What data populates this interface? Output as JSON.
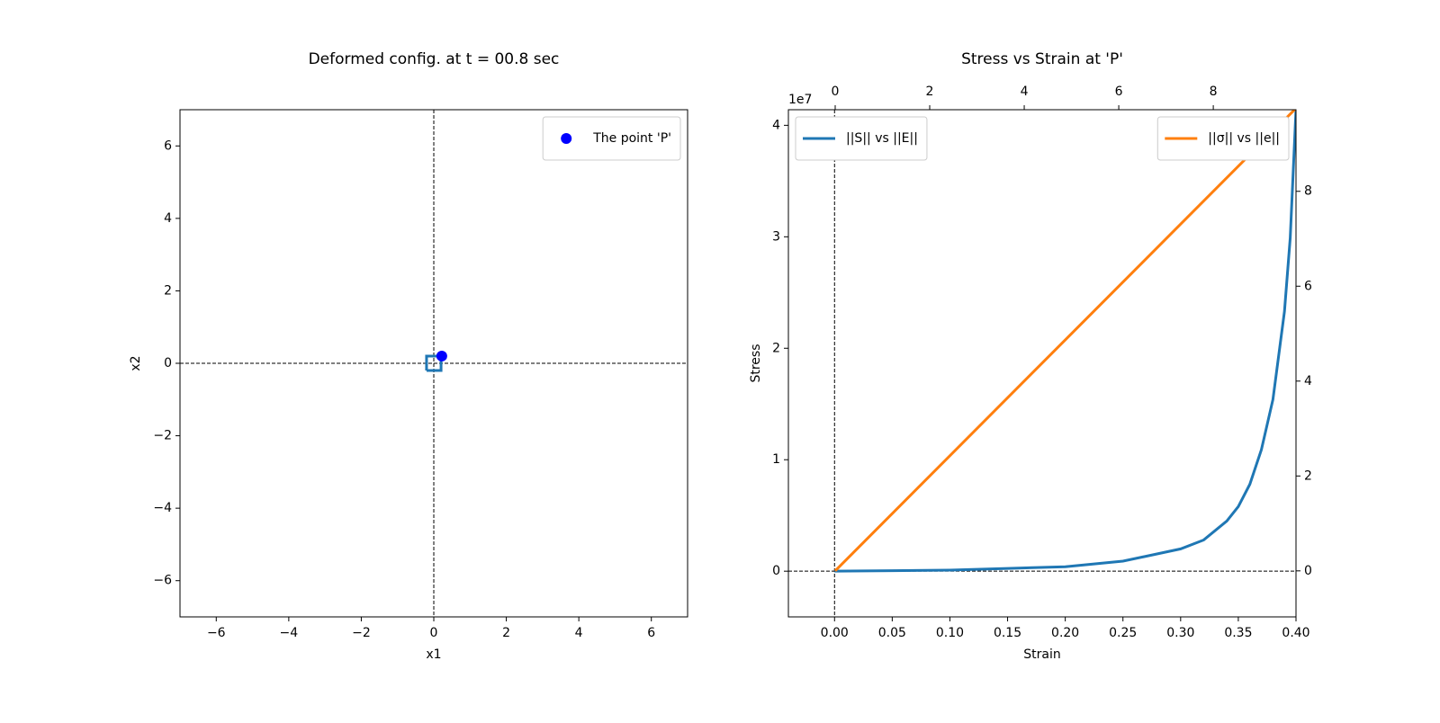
{
  "chart_data": [
    {
      "type": "scatter",
      "title": "Deformed config. at t = 00.8 sec",
      "xlabel": "x1",
      "ylabel": "x2",
      "xlim": [
        -7,
        7
      ],
      "ylim": [
        -7,
        7
      ],
      "xticks": [
        {
          "value": -6,
          "label": "−6"
        },
        {
          "value": -4,
          "label": "−4"
        },
        {
          "value": -2,
          "label": "−2"
        },
        0,
        2,
        4,
        6
      ],
      "yticks": [
        {
          "value": -6,
          "label": "−6"
        },
        {
          "value": -4,
          "label": "−4"
        },
        {
          "value": -2,
          "label": "−2"
        },
        0,
        2,
        4,
        6
      ],
      "hlines": [
        0
      ],
      "vlines": [
        0
      ],
      "legend": "upper right",
      "outline": {
        "color": "#1f77b4",
        "x": [
          -0.2,
          0.2,
          0.2,
          -0.2,
          -0.2
        ],
        "values": [
          -0.2,
          -0.2,
          0.2,
          0.2,
          -0.2
        ]
      },
      "series": [
        {
          "name": "The point 'P'",
          "color": "#0000ff",
          "x": [
            0.22
          ],
          "values": [
            0.2
          ]
        }
      ]
    },
    {
      "type": "line",
      "title": "Stress vs Strain at 'P'",
      "xlabel": "Strain",
      "ylabel": "Stress",
      "y_offset_label": "1e7",
      "xlim": [
        -0.04,
        0.4
      ],
      "ylim": [
        -0.41,
        4.14
      ],
      "xticks": [
        {
          "value": 0,
          "label": "0.00"
        },
        {
          "value": 0.05,
          "label": "0.05"
        },
        {
          "value": 0.1,
          "label": "0.10"
        },
        {
          "value": 0.15,
          "label": "0.15"
        },
        {
          "value": 0.2,
          "label": "0.20"
        },
        {
          "value": 0.25,
          "label": "0.25"
        },
        {
          "value": 0.3,
          "label": "0.30"
        },
        {
          "value": 0.35,
          "label": "0.35"
        },
        {
          "value": 0.4,
          "label": "0.40"
        }
      ],
      "yticks": [
        0,
        1,
        2,
        3,
        4
      ],
      "x2lim": [
        -0.99,
        9.75
      ],
      "x2ticks": [
        0,
        2,
        4,
        6,
        8
      ],
      "y2lim": [
        -0.97,
        9.72
      ],
      "y2ticks": [
        0,
        2,
        4,
        6,
        8
      ],
      "hlines": [
        0
      ],
      "vlines": [
        0,
        0.4
      ],
      "series": [
        {
          "name": "||S|| vs ||E||",
          "color": "#1f77b4",
          "legend": "upper left",
          "x": [
            0,
            0.05,
            0.1,
            0.15,
            0.2,
            0.25,
            0.3,
            0.32,
            0.34,
            0.35,
            0.36,
            0.37,
            0.38,
            0.39,
            0.395,
            0.4
          ],
          "values": [
            0,
            0.004,
            0.01,
            0.025,
            0.04,
            0.09,
            0.2,
            0.28,
            0.45,
            0.58,
            0.78,
            1.09,
            1.54,
            2.33,
            2.99,
            4.14
          ]
        },
        {
          "name": "||σ|| vs ||e||",
          "color": "#ff7f0e",
          "legend": "upper right",
          "axis": "y2",
          "x": [
            0,
            9.74
          ],
          "values": [
            0,
            9.74
          ]
        }
      ]
    }
  ]
}
